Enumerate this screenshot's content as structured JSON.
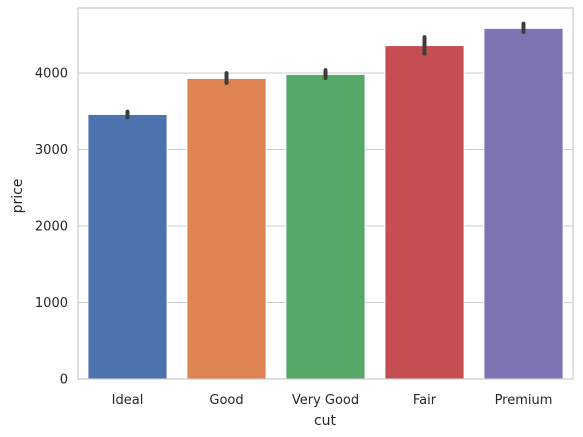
{
  "chart_data": {
    "type": "bar",
    "xlabel": "cut",
    "ylabel": "price",
    "categories": [
      "Ideal",
      "Good",
      "Very Good",
      "Fair",
      "Premium"
    ],
    "values": [
      3458,
      3929,
      3982,
      4359,
      4584
    ],
    "error_bars": [
      [
        3420,
        3495
      ],
      [
        3870,
        3998
      ],
      [
        3935,
        4038
      ],
      [
        4255,
        4470
      ],
      [
        4535,
        4645
      ]
    ],
    "colors": [
      "#4c72b0",
      "#dd8452",
      "#55a868",
      "#c44e52",
      "#8172b3"
    ],
    "ylim": [
      0,
      4850
    ],
    "yticks": [
      0,
      1000,
      2000,
      3000,
      4000
    ],
    "grid": "horizontal",
    "legend": "none"
  }
}
